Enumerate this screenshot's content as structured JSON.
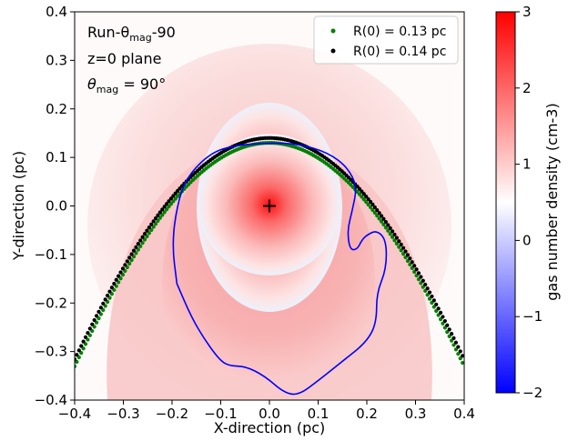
{
  "chart_data": {
    "type": "heatmap",
    "title": "",
    "xlabel": "X-direction (pc)",
    "ylabel": "Y-direction (pc)",
    "xlim": [
      -0.4,
      0.4
    ],
    "ylim": [
      -0.4,
      0.4
    ],
    "xticks": [
      -0.4,
      -0.3,
      -0.2,
      -0.1,
      0.0,
      0.1,
      0.2,
      0.3,
      0.4
    ],
    "yticks": [
      -0.4,
      -0.3,
      -0.2,
      -0.1,
      0.0,
      0.1,
      0.2,
      0.3,
      0.4
    ],
    "xtick_labels": [
      "−0.4",
      "−0.3",
      "−0.2",
      "−0.1",
      "0.0",
      "0.1",
      "0.2",
      "0.3",
      "0.4"
    ],
    "ytick_labels": [
      "−0.4",
      "−0.3",
      "−0.2",
      "−0.1",
      "0.0",
      "0.1",
      "0.2",
      "0.3",
      "0.4"
    ],
    "annotations": {
      "line1": "Run-θ",
      "line1_sub": "mag",
      "line1_tail": "-90",
      "line2": "z=0 plane",
      "line3": "θ",
      "line3_sub": "mag",
      "line3_tail": " = 90°"
    },
    "legend": {
      "placement": "top-right",
      "entries": [
        {
          "label": "R(0) = 0.13 pc",
          "color": "#008000"
        },
        {
          "label": "R(0) = 0.14 pc",
          "color": "#000000"
        }
      ]
    },
    "colorbar": {
      "label": "gas number density (cm-3)",
      "range": [
        -2,
        3
      ],
      "ticks": [
        -2,
        -1,
        0,
        1,
        2,
        3
      ],
      "tick_labels": [
        "−2",
        "−1",
        "0",
        "1",
        "2",
        "3"
      ],
      "colors": [
        "#0000ff",
        "#ffffff",
        "#ff0000"
      ],
      "white_at": 0.5
    },
    "series": [
      {
        "name": "R(0) = 0.13 pc",
        "kind": "dotted-curve",
        "color": "#008000",
        "R0": 0.13,
        "x_range": [
          -0.4,
          0.4
        ]
      },
      {
        "name": "R(0) = 0.14 pc",
        "kind": "dotted-curve",
        "color": "#000000",
        "R0": 0.14,
        "x_range": [
          -0.4,
          0.4
        ]
      }
    ],
    "star_marker": {
      "x": 0.0,
      "y": 0.0,
      "symbol": "+"
    },
    "contour": {
      "color": "#0000ff",
      "points": [
        [
          -0.19,
          -0.16
        ],
        [
          -0.2,
          -0.08
        ],
        [
          -0.19,
          0.0
        ],
        [
          -0.17,
          0.06
        ],
        [
          -0.12,
          0.11
        ],
        [
          -0.07,
          0.125
        ],
        [
          0.0,
          0.13
        ],
        [
          0.06,
          0.128
        ],
        [
          0.12,
          0.11
        ],
        [
          0.16,
          0.08
        ],
        [
          0.18,
          0.04
        ],
        [
          0.17,
          -0.01
        ],
        [
          0.16,
          -0.05
        ],
        [
          0.165,
          -0.09
        ],
        [
          0.18,
          -0.09
        ],
        [
          0.19,
          -0.07
        ],
        [
          0.2,
          -0.06
        ],
        [
          0.22,
          -0.05
        ],
        [
          0.24,
          -0.07
        ],
        [
          0.24,
          -0.13
        ],
        [
          0.22,
          -0.18
        ],
        [
          0.22,
          -0.24
        ],
        [
          0.2,
          -0.28
        ],
        [
          0.15,
          -0.32
        ],
        [
          0.1,
          -0.36
        ],
        [
          0.06,
          -0.39
        ],
        [
          0.03,
          -0.385
        ],
        [
          -0.01,
          -0.35
        ],
        [
          -0.05,
          -0.33
        ],
        [
          -0.08,
          -0.33
        ],
        [
          -0.1,
          -0.32
        ],
        [
          -0.13,
          -0.28
        ],
        [
          -0.16,
          -0.23
        ],
        [
          -0.19,
          -0.16
        ]
      ]
    }
  }
}
